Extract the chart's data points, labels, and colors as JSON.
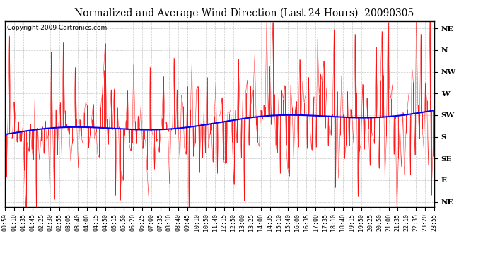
{
  "title": "Normalized and Average Wind Direction (Last 24 Hours)  20090305",
  "copyright": "Copyright 2009 Cartronics.com",
  "yticks_labels": [
    "NE",
    "N",
    "NW",
    "W",
    "SW",
    "S",
    "SE",
    "E",
    "NE"
  ],
  "yticks_values": [
    360,
    315,
    270,
    225,
    180,
    135,
    90,
    45,
    0
  ],
  "ylim": [
    -10,
    375
  ],
  "background_color": "#ffffff",
  "grid_color": "#bbbbbb",
  "red_color": "#ff0000",
  "blue_color": "#0000ff",
  "title_fontsize": 10,
  "copyright_fontsize": 6.5,
  "tick_fontsize": 6.5,
  "n_points": 288,
  "time_labels": [
    "00:59",
    "01:10",
    "01:35",
    "01:45",
    "02:25",
    "02:30",
    "02:55",
    "03:05",
    "03:40",
    "04:00",
    "04:15",
    "04:50",
    "05:15",
    "05:50",
    "06:20",
    "06:25",
    "07:00",
    "07:35",
    "08:10",
    "08:40",
    "09:45",
    "10:10",
    "10:50",
    "11:40",
    "12:15",
    "12:50",
    "13:00",
    "13:25",
    "14:00",
    "14:35",
    "15:10",
    "15:40",
    "16:00",
    "16:35",
    "17:00",
    "17:35",
    "18:10",
    "18:40",
    "19:15",
    "19:50",
    "20:25",
    "20:50",
    "21:00",
    "21:35",
    "22:10",
    "22:35",
    "23:20",
    "23:55"
  ]
}
